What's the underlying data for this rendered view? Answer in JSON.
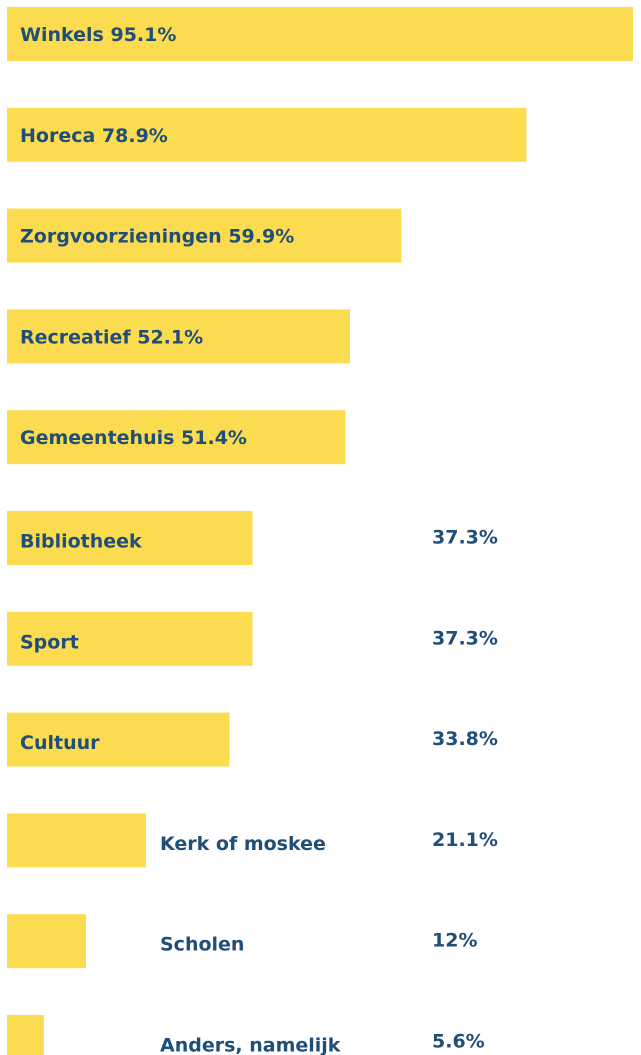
{
  "chart_data": {
    "type": "bar",
    "orientation": "horizontal",
    "color": "#fbdb4f",
    "categories": [
      "Winkels",
      "Horeca",
      "Zorgvoorzieningen",
      "Recreatief",
      "Gemeentehuis",
      "Bibliotheek",
      "Sport",
      "Cultuur",
      "Kerk of moskee",
      "Scholen",
      "Anders, namelijk"
    ],
    "values": [
      95.1,
      78.9,
      59.9,
      52.1,
      51.4,
      37.3,
      37.3,
      33.8,
      21.1,
      12,
      5.6
    ],
    "value_labels": [
      "95.1%",
      "78.9%",
      "59.9%",
      "52.1%",
      "51.4%",
      "37.3%",
      "37.3%",
      "33.8%",
      "21.1%",
      "12%",
      "5.6%"
    ]
  }
}
